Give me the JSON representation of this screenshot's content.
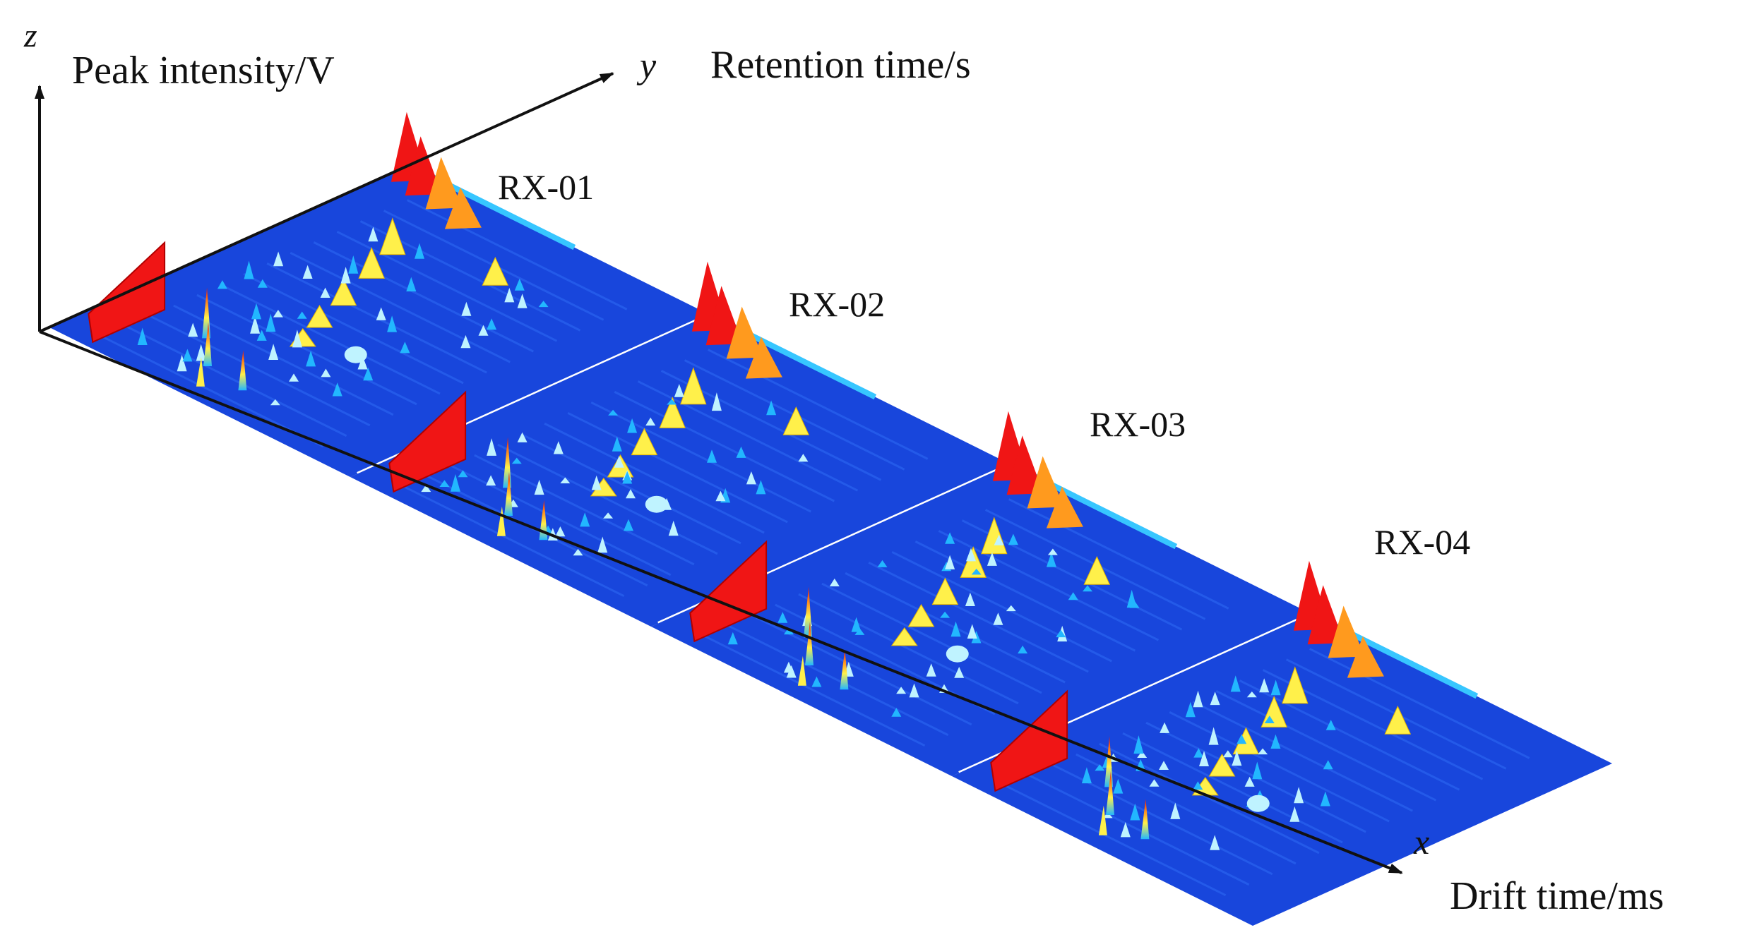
{
  "chart_data": {
    "type": "surface-3d",
    "axes": {
      "z": {
        "letter": "z",
        "label": "Peak intensity/V"
      },
      "y": {
        "letter": "y",
        "label": "Retention time/s"
      },
      "x": {
        "letter": "x",
        "label": "Drift time/ms"
      }
    },
    "samples": [
      "RX-01",
      "RX-02",
      "RX-03",
      "RX-04"
    ],
    "colormap": [
      "#0b2fd6",
      "#1e63ff",
      "#22b7ff",
      "#bff3ff",
      "#fff04a",
      "#ff9a1e",
      "#f01515"
    ],
    "background_color": "#1846dc",
    "separator_color": "#ffffff"
  }
}
